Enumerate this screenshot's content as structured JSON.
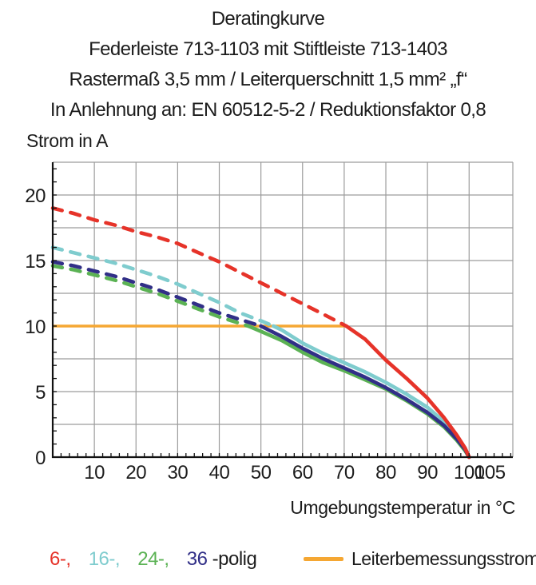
{
  "header": {
    "title": "Deratingkurve",
    "subtitle1": "Federleiste 713-1103 mit Stiftleiste 713-1403",
    "subtitle2": "Rastermaß 3,5 mm / Leiterquerschnitt 1,5 mm² „f“",
    "subtitle3": "In Anlehnung an: EN 60512-5-2 / Reduktionsfaktor 0,8"
  },
  "chart_data": {
    "type": "line",
    "title": "Deratingkurve",
    "ylabel": "Strom in A",
    "xlabel": "Umgebungstemperatur in °C",
    "xlim": [
      0,
      110.5
    ],
    "ylim": [
      0,
      22.5
    ],
    "x_ticks": [
      10,
      20,
      30,
      40,
      50,
      60,
      70,
      80,
      90,
      100,
      105
    ],
    "y_ticks": [
      0,
      5,
      10,
      15,
      20
    ],
    "grid": {
      "x_step": 10,
      "y_step": 2.5,
      "minor_x_tick_step": 2,
      "minor_y_tick_step": 1,
      "grid_color": "#9c9c9c",
      "axis_color": "#111111"
    },
    "legend_position": "bottom",
    "series": [
      {
        "name": "24-polig",
        "color": "#5bb254",
        "style": "dashed-above-rated-solid-below",
        "rated_crossing_c": 47,
        "points_dashed": [
          [
            0,
            14.6
          ],
          [
            5,
            14.3
          ],
          [
            10,
            13.9
          ],
          [
            15,
            13.5
          ],
          [
            20,
            13.0
          ],
          [
            25,
            12.5
          ],
          [
            30,
            11.9
          ],
          [
            35,
            11.3
          ],
          [
            40,
            10.7
          ],
          [
            44,
            10.3
          ],
          [
            47,
            10.0
          ]
        ],
        "points_solid": [
          [
            47,
            10.0
          ],
          [
            50,
            9.6
          ],
          [
            55,
            8.9
          ],
          [
            60,
            8.0
          ],
          [
            65,
            7.2
          ],
          [
            70,
            6.6
          ],
          [
            75,
            5.9
          ],
          [
            80,
            5.2
          ],
          [
            85,
            4.3
          ],
          [
            90,
            3.3
          ],
          [
            94,
            2.3
          ],
          [
            97,
            1.3
          ],
          [
            99,
            0.5
          ],
          [
            100,
            0
          ]
        ]
      },
      {
        "name": "16-polig",
        "color": "#7fccce",
        "style": "dashed-above-rated-solid-below",
        "rated_crossing_c": 53,
        "points_dashed": [
          [
            0,
            16.0
          ],
          [
            5,
            15.6
          ],
          [
            10,
            15.2
          ],
          [
            15,
            14.8
          ],
          [
            20,
            14.3
          ],
          [
            25,
            13.8
          ],
          [
            30,
            13.2
          ],
          [
            35,
            12.5
          ],
          [
            40,
            11.8
          ],
          [
            45,
            11.0
          ],
          [
            50,
            10.4
          ],
          [
            53,
            10.0
          ]
        ],
        "points_solid": [
          [
            53,
            10.0
          ],
          [
            55,
            9.7
          ],
          [
            60,
            8.7
          ],
          [
            65,
            7.9
          ],
          [
            70,
            7.2
          ],
          [
            75,
            6.5
          ],
          [
            80,
            5.7
          ],
          [
            85,
            4.8
          ],
          [
            90,
            3.8
          ],
          [
            94,
            2.7
          ],
          [
            97,
            1.6
          ],
          [
            99,
            0.7
          ],
          [
            100,
            0
          ]
        ]
      },
      {
        "name": "36-polig",
        "color": "#312f87",
        "style": "dashed-above-rated-solid-below",
        "rated_crossing_c": 50,
        "points_dashed": [
          [
            0,
            14.9
          ],
          [
            5,
            14.6
          ],
          [
            10,
            14.2
          ],
          [
            15,
            13.8
          ],
          [
            20,
            13.3
          ],
          [
            25,
            12.8
          ],
          [
            30,
            12.2
          ],
          [
            35,
            11.6
          ],
          [
            40,
            11.0
          ],
          [
            45,
            10.5
          ],
          [
            50,
            10.0
          ]
        ],
        "points_solid": [
          [
            50,
            10.0
          ],
          [
            55,
            9.2
          ],
          [
            60,
            8.3
          ],
          [
            65,
            7.5
          ],
          [
            70,
            6.8
          ],
          [
            75,
            6.1
          ],
          [
            80,
            5.3
          ],
          [
            85,
            4.4
          ],
          [
            90,
            3.4
          ],
          [
            94,
            2.4
          ],
          [
            97,
            1.4
          ],
          [
            99,
            0.6
          ],
          [
            100,
            0
          ]
        ]
      },
      {
        "name": "6-polig",
        "color": "#e63329",
        "style": "dashed-above-rated-solid-below",
        "rated_crossing_c": 70.5,
        "points_dashed": [
          [
            0,
            19.0
          ],
          [
            5,
            18.6
          ],
          [
            10,
            18.1
          ],
          [
            15,
            17.7
          ],
          [
            20,
            17.2
          ],
          [
            25,
            16.8
          ],
          [
            30,
            16.3
          ],
          [
            35,
            15.6
          ],
          [
            40,
            14.9
          ],
          [
            45,
            14.1
          ],
          [
            50,
            13.3
          ],
          [
            55,
            12.5
          ],
          [
            60,
            11.7
          ],
          [
            65,
            10.9
          ],
          [
            70.5,
            10.0
          ]
        ],
        "points_solid": [
          [
            70.5,
            10.0
          ],
          [
            75,
            9.0
          ],
          [
            80,
            7.4
          ],
          [
            85,
            6.0
          ],
          [
            90,
            4.5
          ],
          [
            94,
            3.0
          ],
          [
            97,
            1.7
          ],
          [
            99,
            0.7
          ],
          [
            100,
            0
          ]
        ]
      }
    ],
    "rated_line": {
      "name": "Leiterbemessungsstrom",
      "color": "#f5a733",
      "value_a": 10,
      "x_start_c": 0,
      "x_end_c": 70.5
    }
  },
  "legend": {
    "pole_items": [
      {
        "label": "6-,",
        "color": "#e63329"
      },
      {
        "label": "16-,",
        "color": "#7fccce"
      },
      {
        "label": "24-,",
        "color": "#5bb254"
      },
      {
        "label": "36",
        "color": "#312f87"
      },
      {
        "label": "-polig",
        "color": "#1c1c1c"
      }
    ],
    "rated_label": "Leiterbemessungsstrom",
    "rated_color": "#f5a733"
  }
}
